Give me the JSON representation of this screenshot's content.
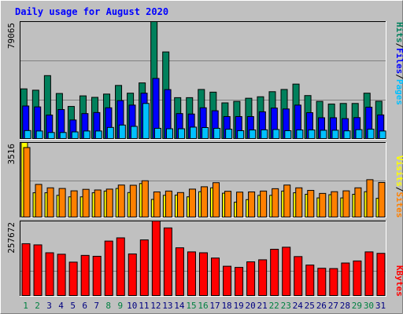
{
  "title": "Daily usage for August 2020",
  "colors": {
    "title": "#0000ff",
    "background": "#c0c0c0",
    "panel": "#c0c0c0",
    "grid": "#808080",
    "hits": "#00805c",
    "files": "#0000ff",
    "pages": "#00c0ff",
    "visits": "#ffff00",
    "sites": "#ff8000",
    "kbytes": "#ff0000",
    "day_normal": "#000080",
    "day_weekend": "#008040"
  },
  "chart_data": [
    {
      "type": "bar",
      "panel": "hits-files-pages",
      "ymax_label": "79065",
      "ylim": [
        0,
        79065
      ],
      "legend": {
        "pages": "Pages",
        "files": "Files",
        "hits": "Hits",
        "sep": "/"
      },
      "x": [
        1,
        2,
        3,
        4,
        5,
        6,
        7,
        8,
        9,
        10,
        11,
        12,
        13,
        14,
        15,
        16,
        17,
        18,
        19,
        20,
        21,
        22,
        23,
        24,
        25,
        26,
        27,
        28,
        29,
        30,
        31
      ],
      "series": [
        {
          "name": "Hits",
          "values": [
            33900,
            33000,
            42800,
            30800,
            22100,
            29200,
            28200,
            30400,
            36200,
            31000,
            37900,
            79065,
            58700,
            28000,
            28000,
            33500,
            31700,
            24500,
            25500,
            27600,
            28600,
            32000,
            33500,
            37100,
            29400,
            25500,
            23700,
            24100,
            24100,
            31000,
            25600
          ]
        },
        {
          "name": "Files",
          "values": [
            22400,
            21800,
            16300,
            20000,
            13000,
            17300,
            18000,
            21200,
            26000,
            23000,
            31000,
            40900,
            33400,
            17300,
            17000,
            21200,
            19200,
            15300,
            15300,
            15300,
            18500,
            21000,
            20400,
            23000,
            17900,
            14500,
            14500,
            13900,
            14600,
            21600,
            16400
          ]
        },
        {
          "name": "Pages",
          "values": [
            5900,
            5600,
            4600,
            4600,
            5000,
            5600,
            5600,
            8000,
            9600,
            8700,
            24100,
            7400,
            7100,
            7100,
            8200,
            7900,
            7400,
            6800,
            5800,
            6300,
            6400,
            6600,
            5800,
            6300,
            6300,
            6100,
            6100,
            5700,
            6500,
            6800,
            5600
          ]
        }
      ]
    },
    {
      "type": "bar",
      "panel": "visits-sites",
      "ymax_label": "3516",
      "ylim": [
        0,
        3516
      ],
      "legend": {
        "sites": "Sites",
        "visits": "Visits",
        "sep": "/"
      },
      "x": [
        1,
        2,
        3,
        4,
        5,
        6,
        7,
        8,
        9,
        10,
        11,
        12,
        13,
        14,
        15,
        16,
        17,
        18,
        19,
        20,
        21,
        22,
        23,
        24,
        25,
        26,
        27,
        28,
        29,
        30,
        31
      ],
      "series": [
        {
          "name": "Visits",
          "values": [
            3516,
            1170,
            1170,
            1050,
            980,
            980,
            1170,
            1250,
            1370,
            1180,
            1600,
            860,
            1050,
            1060,
            980,
            1220,
            1400,
            1150,
            730,
            850,
            1050,
            1050,
            1250,
            1170,
            1100,
            930,
            1080,
            930,
            1100,
            1220,
            910
          ]
        },
        {
          "name": "Sites",
          "values": [
            3280,
            1560,
            1400,
            1370,
            1260,
            1330,
            1300,
            1340,
            1530,
            1520,
            1730,
            1210,
            1250,
            1180,
            1340,
            1450,
            1640,
            1240,
            1200,
            1210,
            1250,
            1360,
            1530,
            1400,
            1280,
            1140,
            1220,
            1260,
            1400,
            1780,
            1650
          ]
        }
      ]
    },
    {
      "type": "bar",
      "panel": "kbytes",
      "ymax_label": "257672",
      "ylim": [
        0,
        257672
      ],
      "legend": {
        "kbytes": "KBytes"
      },
      "x": [
        1,
        2,
        3,
        4,
        5,
        6,
        7,
        8,
        9,
        10,
        11,
        12,
        13,
        14,
        15,
        16,
        17,
        18,
        19,
        20,
        21,
        22,
        23,
        24,
        25,
        26,
        27,
        28,
        29,
        30,
        31
      ],
      "series": [
        {
          "name": "KBytes",
          "values": [
            180000,
            176000,
            149000,
            144000,
            117000,
            140000,
            137000,
            189000,
            200000,
            145000,
            193000,
            257672,
            234000,
            166000,
            152000,
            149000,
            131000,
            103000,
            99000,
            118000,
            125000,
            161000,
            168000,
            136000,
            107000,
            96000,
            95000,
            114000,
            121000,
            152000,
            147000
          ]
        }
      ]
    }
  ],
  "x_labels": [
    "1",
    "2",
    "3",
    "4",
    "5",
    "6",
    "7",
    "8",
    "9",
    "10",
    "11",
    "12",
    "13",
    "14",
    "15",
    "16",
    "17",
    "18",
    "19",
    "20",
    "21",
    "22",
    "23",
    "24",
    "25",
    "26",
    "27",
    "28",
    "29",
    "30",
    "31"
  ],
  "weekend_days": [
    1,
    2,
    8,
    9,
    15,
    16,
    22,
    23,
    29,
    30
  ]
}
